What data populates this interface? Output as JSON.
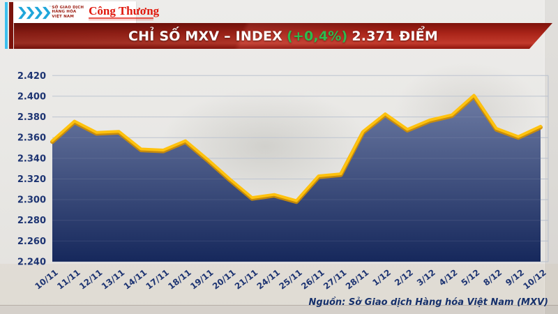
{
  "header": {
    "mxv_logo": {
      "glyph": "❯❯❯❯",
      "trademark": "™",
      "lines": [
        "SỞ GIAO DỊCH",
        "HÀNG HÓA",
        "VIỆT NAM"
      ]
    },
    "congthuong_wordmark": "Công Thương"
  },
  "banner": {
    "title_main": "CHỈ SỐ MXV – INDEX",
    "title_change": "(+0,4%)",
    "title_value": "2.371 ĐIỂM",
    "change_color": "#2dbb4e",
    "banner_color": "#b3281c"
  },
  "chart_data": {
    "type": "area",
    "title": "Chỉ số MXV – INDEX",
    "x": [
      "10/11",
      "11/11",
      "12/11",
      "13/11",
      "14/11",
      "17/11",
      "18/11",
      "19/11",
      "20/11",
      "21/11",
      "24/11",
      "25/11",
      "26/11",
      "27/11",
      "28/11",
      "1/12",
      "2/12",
      "3/12",
      "4/12",
      "5/12",
      "8/12",
      "9/12",
      "10/12"
    ],
    "values": [
      2357,
      2376,
      2365,
      2366,
      2349,
      2348,
      2357,
      2339,
      2320,
      2302,
      2305,
      2299,
      2323,
      2325,
      2366,
      2383,
      2368,
      2377,
      2382,
      2401,
      2369,
      2361,
      2371
    ],
    "ylim": [
      2240,
      2420
    ],
    "ytick_step": 20,
    "ytick_labels": [
      "2.420",
      "2.400",
      "2.380",
      "2.360",
      "2.340",
      "2.320",
      "2.300",
      "2.280",
      "2.260",
      "2.240"
    ],
    "grid": true,
    "legend": "none",
    "line_color": "#ffc20e",
    "line_shadow_color": "#d18f00",
    "fill_top_color": "#6d7ba3",
    "fill_bottom_color": "#16285c",
    "grid_color": "#b8c0cd",
    "label_color": "#1d3472"
  },
  "source_note": "Nguồn: Sở Giao dịch Hàng hóa Việt Nam (MXV)"
}
